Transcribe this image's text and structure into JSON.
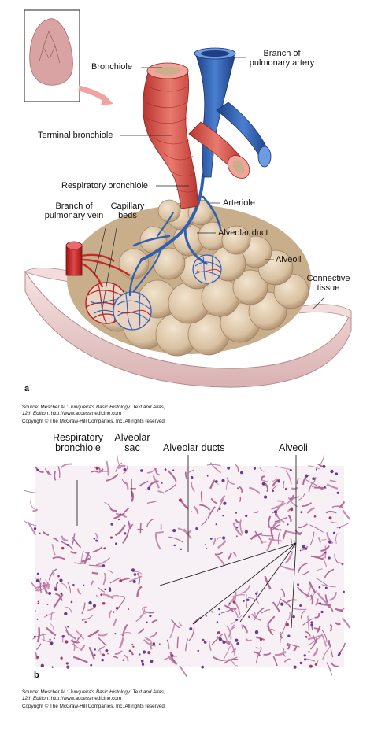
{
  "panel_a": {
    "letter": "a",
    "labels": {
      "bronchiole": "Bronchiole",
      "branch_pulmonary_artery_1": "Branch of",
      "branch_pulmonary_artery_2": "pulmonary artery",
      "terminal_bronchiole": "Terminal bronchiole",
      "respiratory_bronchiole": "Respiratory bronchiole",
      "arteriole": "Arteriole",
      "branch_pulmonary_vein_1": "Branch of",
      "branch_pulmonary_vein_2": "pulmonary vein",
      "capillary_beds_1": "Capillary",
      "capillary_beds_2": "beds",
      "alveolar_duct": "Alveolar duct",
      "alveoli": "Alveoli",
      "connective_tissue_1": "Connective",
      "connective_tissue_2": "tissue"
    },
    "credit": {
      "source_prefix": "Source: Mescher AL: ",
      "book": "Junqueira's Basic Histology: Text and Atlas,",
      "edition": "12th Edition",
      "url": ": http://www.accessmedicine.com",
      "copyright": "Copyright © The McGraw-Hill Companies, Inc. All rights reserved."
    }
  },
  "panel_b": {
    "letter": "b",
    "labels": {
      "respiratory_bronchiole_1": "Respiratory",
      "respiratory_bronchiole_2": "bronchiole",
      "alveolar_sac_1": "Alveolar",
      "alveolar_sac_2": "sac",
      "alveolar_ducts": "Alveolar ducts",
      "alveoli": "Alveoli"
    },
    "credit": {
      "source_prefix": "Source: Mescher AL: ",
      "book": "Junqueira's Basic Histology: Text and Atlas,",
      "edition": "12th Edition",
      "url": ": http://www.accessmedicine.com",
      "copyright": "Copyright © The McGraw-Hill Companies, Inc. All rights reserved."
    }
  },
  "colors": {
    "airway": "#d9574f",
    "airway_dark": "#a8322d",
    "artery": "#2f5fb0",
    "vein": "#c42a2a",
    "alveoli": "#dcc6a8",
    "alveoli_shade": "#b99d7d",
    "tissue": "#ecd2d2",
    "histo_bg": "#f6eef3",
    "histo_tissue": "#c98ab0"
  }
}
